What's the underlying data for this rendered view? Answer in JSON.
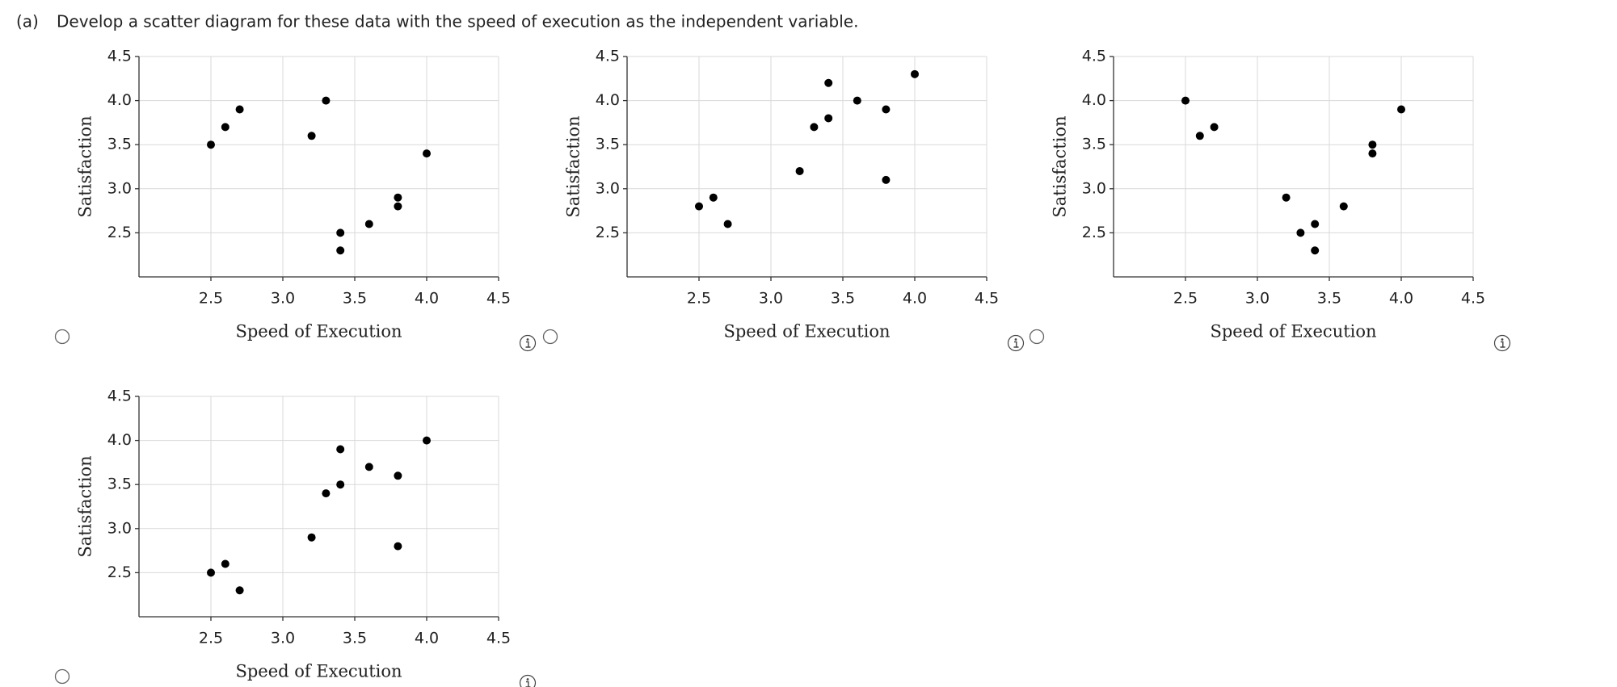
{
  "part_label": "(a)",
  "question": "Develop a scatter diagram for these data with the speed of execution as the independent variable.",
  "chart_data": [
    {
      "type": "scatter",
      "xlabel": "Speed of Execution",
      "ylabel": "Satisfaction",
      "color": "#000000",
      "grid": true,
      "xlim": [
        2.0,
        4.5
      ],
      "ylim": [
        2.0,
        4.5
      ],
      "xticks": [
        2.5,
        {
          "value": 3,
          "label": "3.0"
        },
        3.5,
        {
          "value": 4,
          "label": "4.0"
        },
        4.5
      ],
      "yticks": [
        2.5,
        {
          "value": 3,
          "label": "3.0"
        },
        3.5,
        {
          "value": 4,
          "label": "4.0"
        },
        4.5
      ],
      "x": [
        2.5,
        2.6,
        2.7,
        3.3,
        3.2,
        4.0,
        3.8,
        3.8,
        3.6,
        3.4,
        3.4
      ],
      "values": [
        3.5,
        3.7,
        3.9,
        4.0,
        3.6,
        3.4,
        2.9,
        2.8,
        2.6,
        2.5,
        2.3
      ]
    },
    {
      "type": "scatter",
      "xlabel": "Speed of Execution",
      "ylabel": "Satisfaction",
      "color": "#000000",
      "grid": true,
      "xlim": [
        2.0,
        4.5
      ],
      "ylim": [
        2.0,
        4.5
      ],
      "xticks": [
        2.5,
        {
          "value": 3,
          "label": "3.0"
        },
        3.5,
        {
          "value": 4,
          "label": "4.0"
        },
        4.5
      ],
      "yticks": [
        2.5,
        {
          "value": 3,
          "label": "3.0"
        },
        3.5,
        {
          "value": 4,
          "label": "4.0"
        },
        4.5
      ],
      "x": [
        2.5,
        2.6,
        2.7,
        3.2,
        3.3,
        3.4,
        3.4,
        3.6,
        3.8,
        3.8,
        4.0
      ],
      "values": [
        2.8,
        2.9,
        2.6,
        3.2,
        3.7,
        3.8,
        4.2,
        4.0,
        3.9,
        3.1,
        4.3
      ]
    },
    {
      "type": "scatter",
      "xlabel": "Speed of Execution",
      "ylabel": "Satisfaction",
      "color": "#000000",
      "grid": true,
      "xlim": [
        2.0,
        4.5
      ],
      "ylim": [
        2.0,
        4.5
      ],
      "xticks": [
        2.5,
        {
          "value": 3,
          "label": "3.0"
        },
        3.5,
        {
          "value": 4,
          "label": "4.0"
        },
        4.5
      ],
      "yticks": [
        2.5,
        {
          "value": 3,
          "label": "3.0"
        },
        3.5,
        {
          "value": 4,
          "label": "4.0"
        },
        4.5
      ],
      "x": [
        2.5,
        2.6,
        2.7,
        3.2,
        3.3,
        3.4,
        3.4,
        3.6,
        3.8,
        3.8,
        4.0
      ],
      "values": [
        4.0,
        3.6,
        3.7,
        2.9,
        2.5,
        2.6,
        2.3,
        2.8,
        3.5,
        3.4,
        3.9
      ]
    },
    {
      "type": "scatter",
      "xlabel": "Speed of Execution",
      "ylabel": "Satisfaction",
      "color": "#000000",
      "grid": true,
      "xlim": [
        2.0,
        4.5
      ],
      "ylim": [
        2.0,
        4.5
      ],
      "xticks": [
        2.5,
        {
          "value": 3,
          "label": "3.0"
        },
        3.5,
        {
          "value": 4,
          "label": "4.0"
        },
        4.5
      ],
      "yticks": [
        2.5,
        {
          "value": 3,
          "label": "3.0"
        },
        3.5,
        {
          "value": 4,
          "label": "4.0"
        },
        4.5
      ],
      "x": [
        2.5,
        2.6,
        2.7,
        3.2,
        3.3,
        3.4,
        3.4,
        3.6,
        3.8,
        3.8,
        4.0
      ],
      "values": [
        2.5,
        2.6,
        2.3,
        2.9,
        3.4,
        3.5,
        3.9,
        3.7,
        3.6,
        2.8,
        4.0
      ]
    }
  ]
}
